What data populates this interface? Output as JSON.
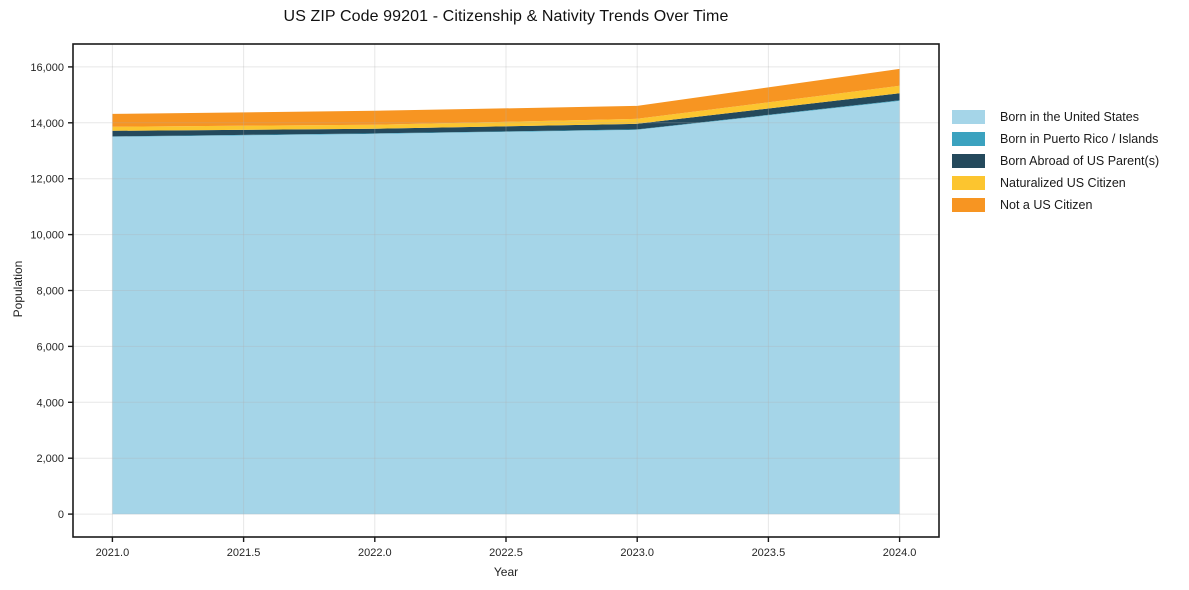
{
  "title": "US ZIP Code 99201 - Citizenship & Nativity Trends Over Time",
  "chart_data": {
    "type": "area",
    "stacked": true,
    "title": "US ZIP Code 99201 - Citizenship & Nativity Trends Over Time",
    "xlabel": "Year",
    "ylabel": "Population",
    "x": [
      2021,
      2022,
      2023,
      2024
    ],
    "series": [
      {
        "name": "Born in the United States",
        "color": "#a5d5e8",
        "values": [
          13500,
          13605,
          13750,
          14785
        ]
      },
      {
        "name": "Born in Puerto Rico / Islands",
        "color": "#3ba2bf",
        "values": [
          15,
          15,
          15,
          20
        ]
      },
      {
        "name": "Born Abroad of US Parent(s)",
        "color": "#24495c",
        "values": [
          200,
          165,
          200,
          250
        ]
      },
      {
        "name": "Naturalized US Citizen",
        "color": "#fcc52f",
        "values": [
          145,
          145,
          180,
          270
        ]
      },
      {
        "name": "Not a US Citizen",
        "color": "#f79522",
        "values": [
          460,
          500,
          460,
          605
        ]
      }
    ],
    "totals": [
      14320,
      14430,
      14605,
      15930
    ],
    "xlim": [
      2020.85,
      2024.15
    ],
    "ylim": [
      -820,
      16820
    ],
    "xticks": [
      2021.0,
      2021.5,
      2022.0,
      2022.5,
      2023.0,
      2023.5,
      2024.0
    ],
    "yticks": [
      0,
      2000,
      4000,
      6000,
      8000,
      10000,
      12000,
      14000,
      16000
    ],
    "grid": true,
    "grid_color": "#b0b0b0",
    "grid_opacity": 0.3,
    "spine_color": "#1a1a1a",
    "tick_label_color": "#262626",
    "legend_position": "right"
  }
}
